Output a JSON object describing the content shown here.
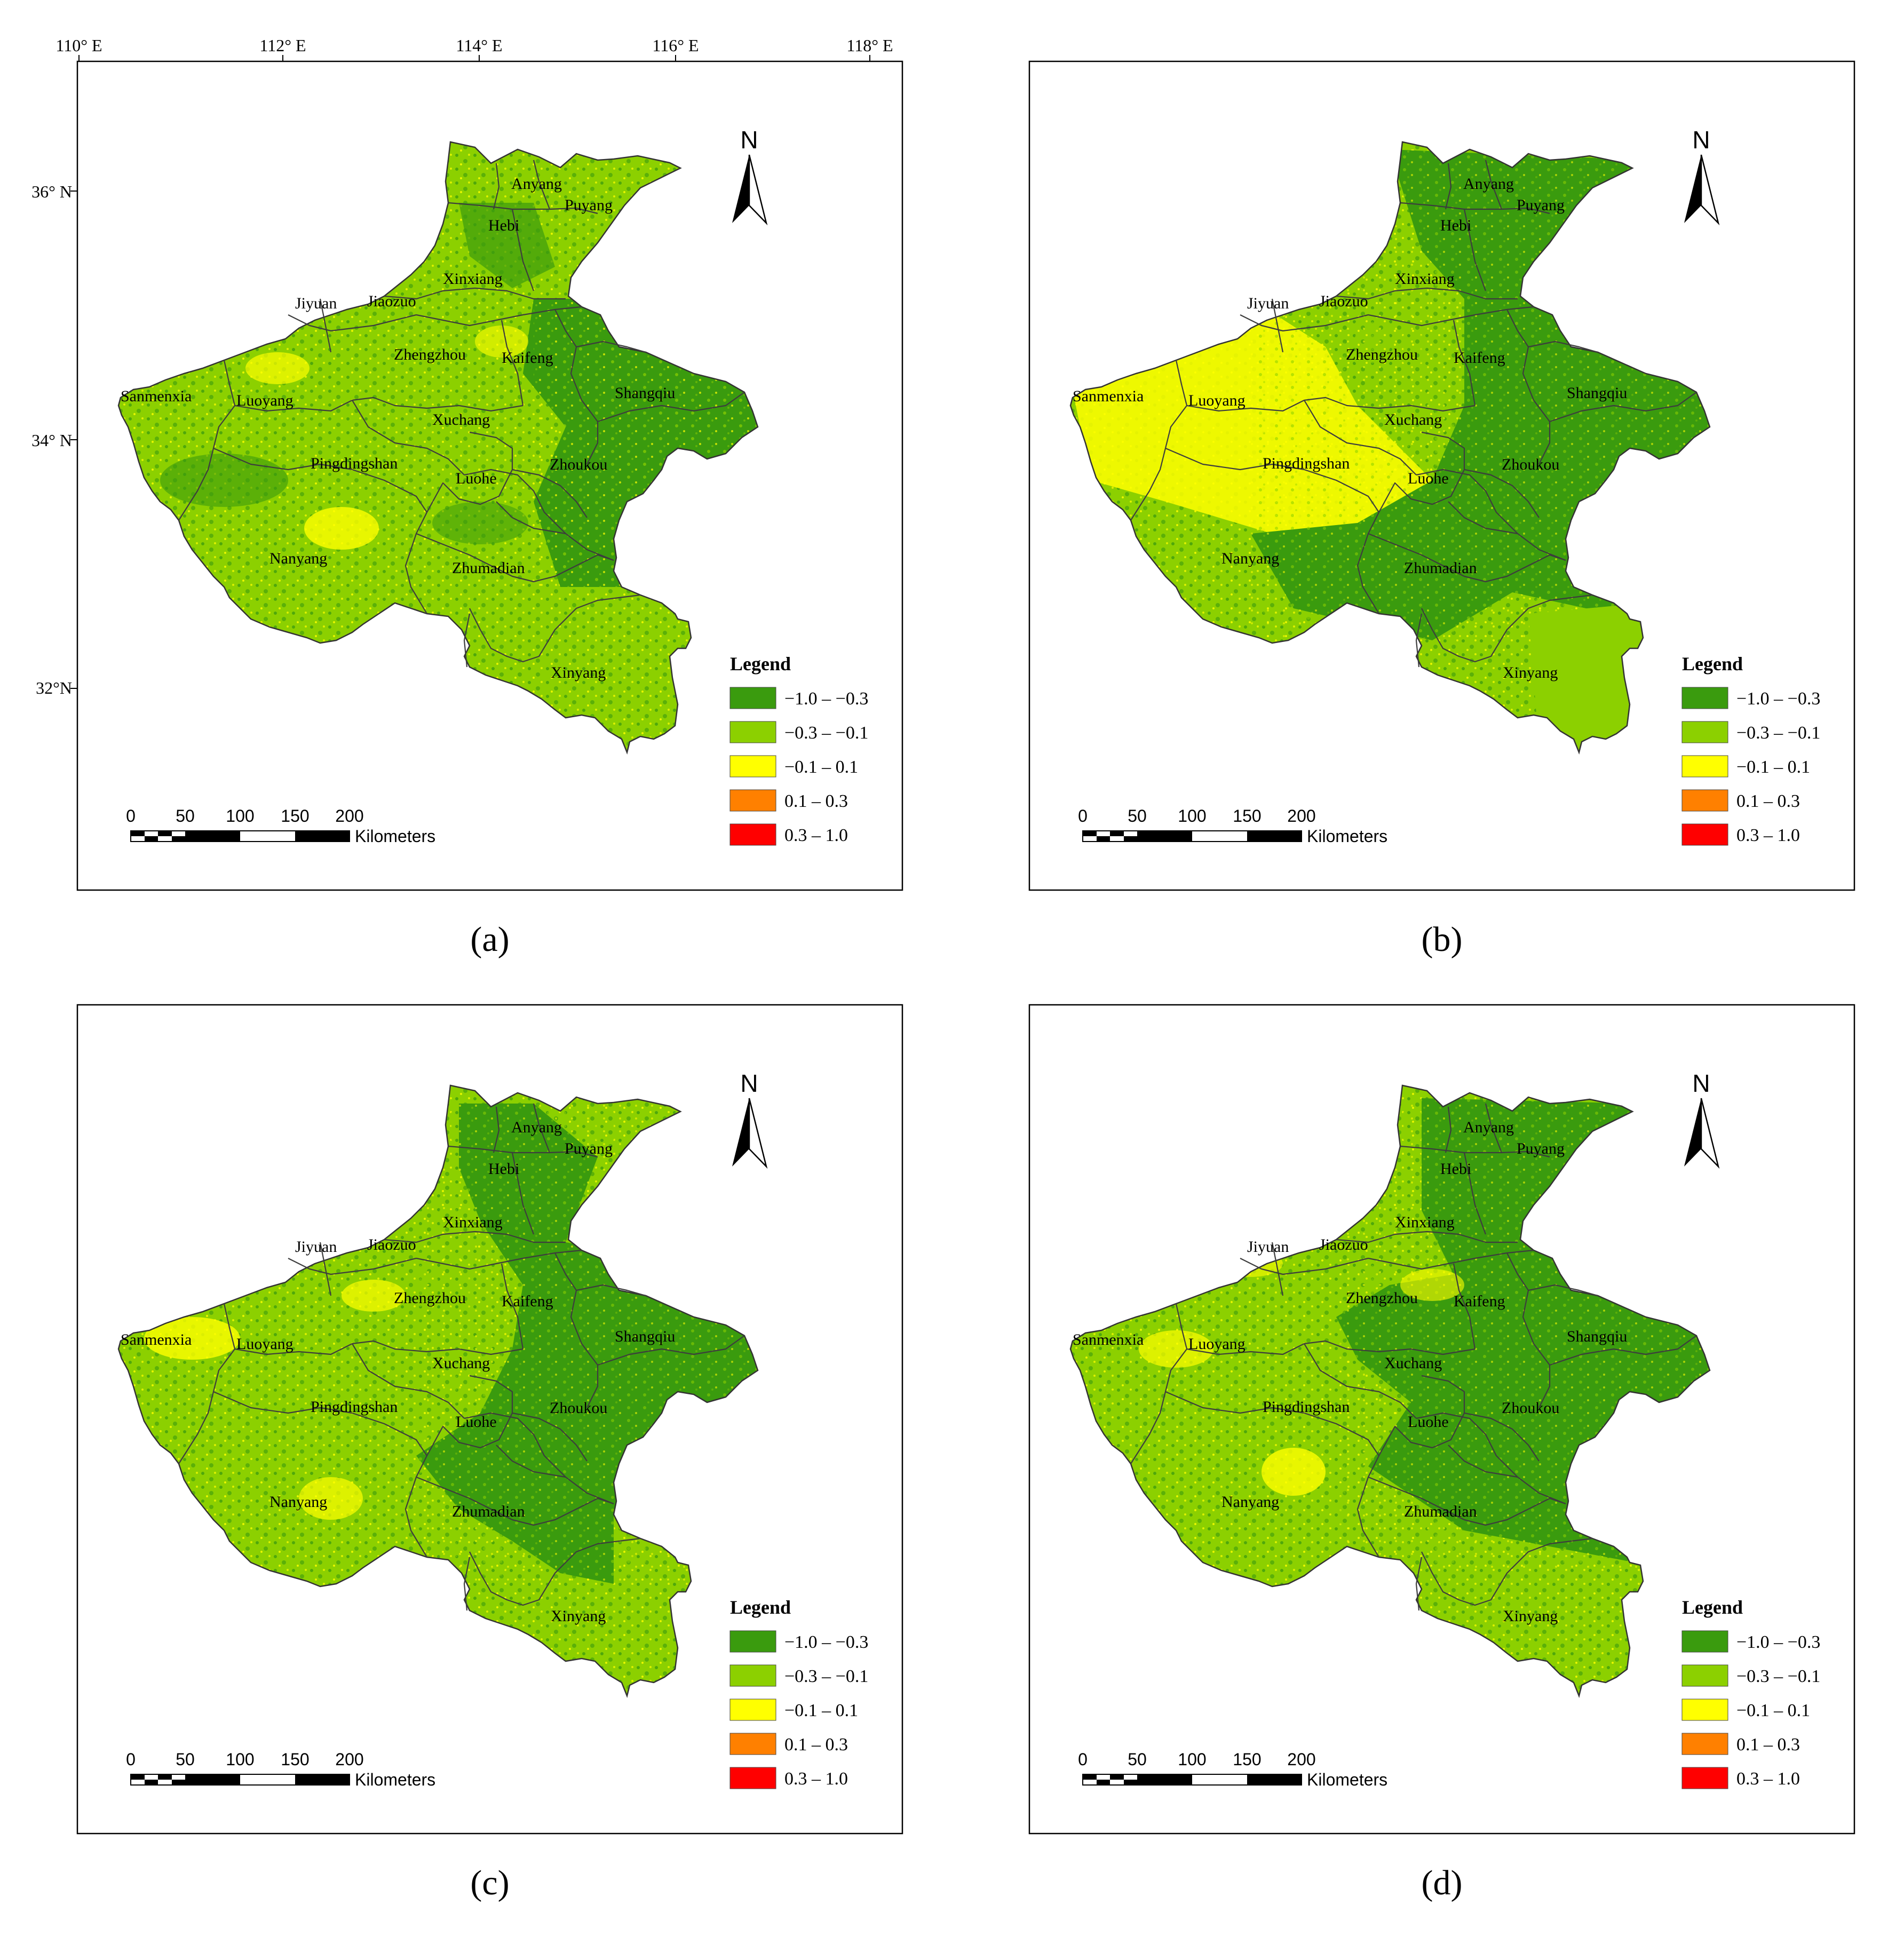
{
  "graticule": {
    "longitudes": [
      "110° E",
      "112° E",
      "114° E",
      "116° E",
      "118° E"
    ],
    "latitudes": [
      "36° N",
      "34° N",
      "32°N"
    ]
  },
  "north_label": "N",
  "scale_bar": {
    "ticks": [
      "0",
      "50",
      "100",
      "150",
      "200"
    ],
    "unit": "Kilometers"
  },
  "legend": {
    "title": "Legend",
    "items": [
      {
        "label": "−1.0 – −0.3",
        "color": "#3a9b0e"
      },
      {
        "label": "−0.3 – −0.1",
        "color": "#8cd000"
      },
      {
        "label": "−0.1 – 0.1",
        "color": "#ffff00"
      },
      {
        "label": "0.1 – 0.3",
        "color": "#ff8000"
      },
      {
        "label": "0.3 – 1.0",
        "color": "#ff0000"
      }
    ]
  },
  "cities": [
    "Anyang",
    "Puyang",
    "Hebi",
    "Xinxiang",
    "Jiyuan",
    "Jiaozuo",
    "Zhengzhou",
    "Kaifeng",
    "Shangqiu",
    "Sanmenxia",
    "Luoyang",
    "Xuchang",
    "Pingdingshan",
    "Luohe",
    "Zhoukou",
    "Nanyang",
    "Zhumadian",
    "Xinyang"
  ],
  "panels": [
    {
      "label": "(a)",
      "dark_areas": "east",
      "yellow_areas": "few"
    },
    {
      "label": "(b)",
      "dark_areas": "east and south",
      "yellow_areas": "west"
    },
    {
      "label": "(c)",
      "dark_areas": "east",
      "yellow_areas": "scattered"
    },
    {
      "label": "(d)",
      "dark_areas": "east and center",
      "yellow_areas": "scattered"
    }
  ]
}
